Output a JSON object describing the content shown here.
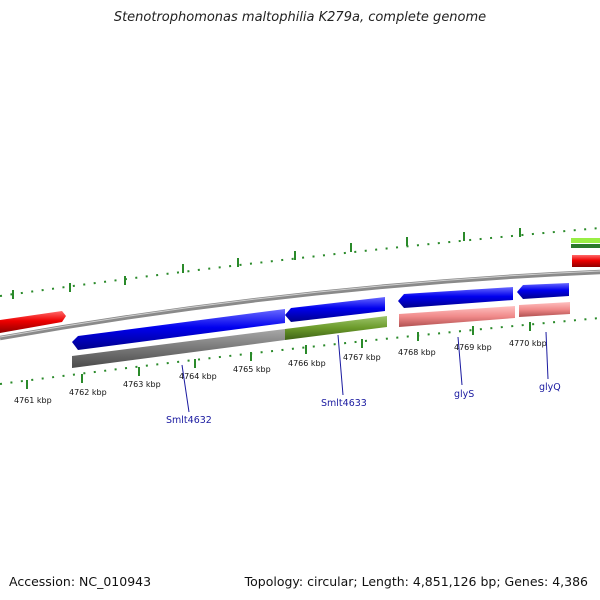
{
  "title": "Stenotrophomonas maltophilia K279a, complete genome",
  "footer": {
    "accession": "Accession: NC_010943",
    "topology": "Topology: circular; Length: 4,851,126 bp; Genes: 4,386"
  },
  "kbp_labels": [
    "4761 kbp",
    "4762 kbp",
    "4763 kbp",
    "4764 kbp",
    "4765 kbp",
    "4766 kbp",
    "4767 kbp",
    "4768 kbp",
    "4769 kbp",
    "4770 kbp"
  ],
  "gene_labels": [
    "Smlt4632",
    "Smlt4633",
    "glyS",
    "glyQ"
  ],
  "colors": {
    "backbone": "#8a8a8a",
    "cds_forward": "#0000ee",
    "cds_red": "#ee0000",
    "tick": "#2a8a2a",
    "gray_band": "#777777",
    "olive_band": "#6b9a2a",
    "pink_band": "#f08a8a",
    "label_blue": "#1a1aa0",
    "lime": "#99ee44"
  }
}
